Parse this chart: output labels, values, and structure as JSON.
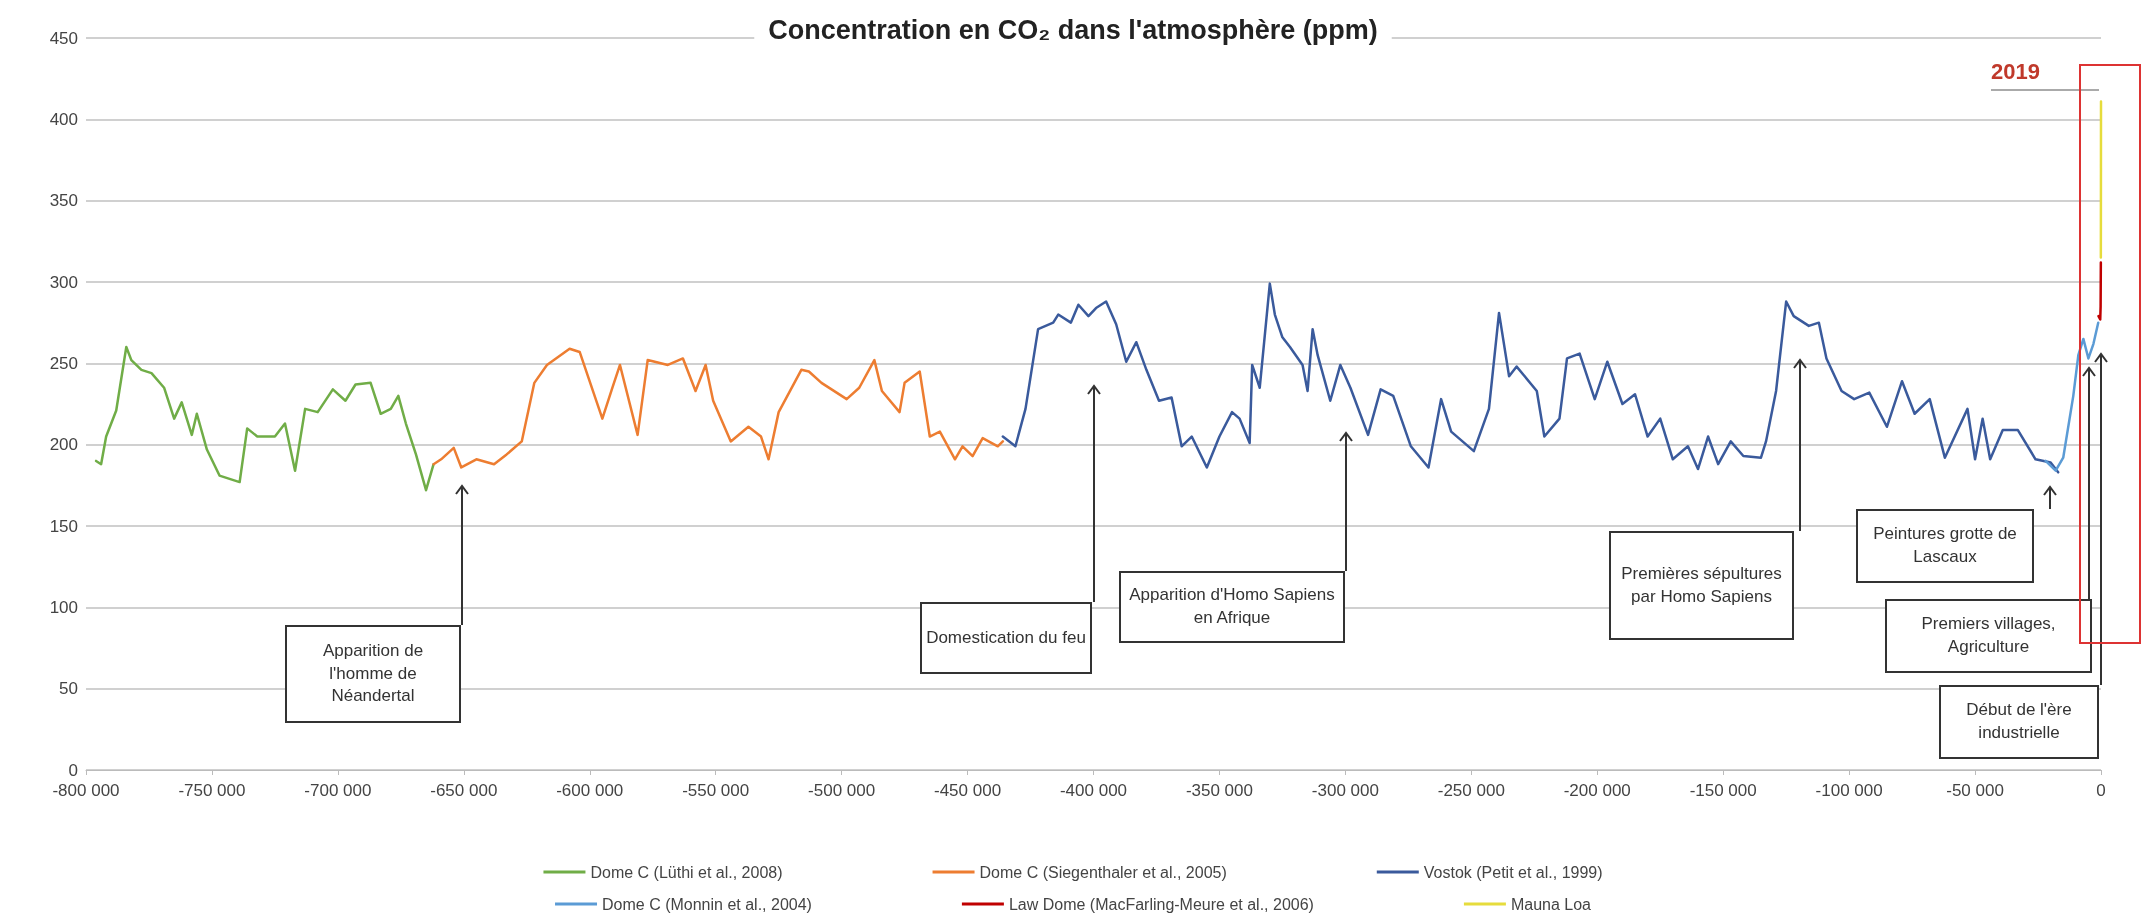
{
  "chart_data": {
    "type": "line",
    "title": "Concentration en CO₂ dans l'atmosphère (ppm)",
    "xlim": [
      -800000,
      0
    ],
    "xticks": [
      {
        "value": -800000,
        "label": "-800 000"
      },
      {
        "value": -750000,
        "label": "-750 000"
      },
      {
        "value": -700000,
        "label": "-700 000"
      },
      {
        "value": -650000,
        "label": "-650 000"
      },
      {
        "value": -600000,
        "label": "-600 000"
      },
      {
        "value": -550000,
        "label": "-550 000"
      },
      {
        "value": -500000,
        "label": "-500 000"
      },
      {
        "value": -450000,
        "label": "-450 000"
      },
      {
        "value": -400000,
        "label": "-400 000"
      },
      {
        "value": -350000,
        "label": "-350 000"
      },
      {
        "value": -300000,
        "label": "-300 000"
      },
      {
        "value": -250000,
        "label": "-250 000"
      },
      {
        "value": -200000,
        "label": "-200 000"
      },
      {
        "value": -150000,
        "label": "-150 000"
      },
      {
        "value": -100000,
        "label": "-100 000"
      },
      {
        "value": -50000,
        "label": "-50 000"
      },
      0
    ],
    "ylim": [
      0,
      450
    ],
    "yticks": [
      0,
      50,
      100,
      150,
      200,
      250,
      300,
      350,
      400,
      450
    ],
    "grid": "y",
    "legend": "bottom",
    "marker": "none",
    "line_style": "solid",
    "series": [
      {
        "name": "Dome C (Lüthi et al., 2008)",
        "color": "#70ad47",
        "x": [
          -796000,
          -794000,
          -792000,
          -788000,
          -784000,
          -782000,
          -778000,
          -774000,
          -769000,
          -765000,
          -762000,
          -758000,
          -756000,
          -752000,
          -747000,
          -739000,
          -736000,
          -732000,
          -725000,
          -721000,
          -717000,
          -713000,
          -708000,
          -702000,
          -697000,
          -693000,
          -687000,
          -683000,
          -679000,
          -676000,
          -673000,
          -669000,
          -665000,
          -662000
        ],
        "values": [
          190,
          188,
          205,
          221,
          260,
          252,
          246,
          244,
          235,
          216,
          226,
          206,
          219,
          197,
          181,
          177,
          210,
          205,
          205,
          213,
          184,
          222,
          220,
          234,
          227,
          237,
          238,
          219,
          222,
          230,
          213,
          194,
          172,
          188
        ]
      },
      {
        "name": "Dome C (Siegenthaler et al., 2005)",
        "color": "#ed7d31",
        "x": [
          -662000,
          -659000,
          -654000,
          -651000,
          -645000,
          -638000,
          -633000,
          -627000,
          -622000,
          -617000,
          -608000,
          -604000,
          -595000,
          -591000,
          -588000,
          -581000,
          -577000,
          -569000,
          -563000,
          -558000,
          -554000,
          -551000,
          -544000,
          -537000,
          -532000,
          -529000,
          -525000,
          -516000,
          -513000,
          -508000,
          -498000,
          -493000,
          -487000,
          -484000,
          -477000,
          -475000,
          -469000,
          -465000,
          -461000,
          -455000,
          -452000,
          -448000,
          -444000,
          -438000,
          -436000
        ],
        "values": [
          188,
          191,
          198,
          186,
          191,
          188,
          194,
          202,
          238,
          249,
          259,
          257,
          216,
          235,
          249,
          206,
          252,
          249,
          253,
          233,
          249,
          227,
          202,
          211,
          205,
          191,
          220,
          246,
          245,
          238,
          228,
          235,
          252,
          233,
          220,
          238,
          245,
          205,
          208,
          191,
          199,
          193,
          204,
          199,
          202
        ]
      },
      {
        "name": "Vostok (Petit et al., 1999)",
        "color": "#3a5a9c",
        "x": [
          -436000,
          -431000,
          -427000,
          -422000,
          -416000,
          -414000,
          -409000,
          -406000,
          -402000,
          -399000,
          -395000,
          -391000,
          -387000,
          -383000,
          -379000,
          -374000,
          -369000,
          -365000,
          -361000,
          -355000,
          -350000,
          -345000,
          -342000,
          -338000,
          -337000,
          -334000,
          -330000,
          -328000,
          -325000,
          -322000,
          -317000,
          -315000,
          -313000,
          -311000,
          -306000,
          -302000,
          -298000,
          -291000,
          -286000,
          -281000,
          -274000,
          -267000,
          -262000,
          -258000,
          -249000,
          -243000,
          -239000,
          -235000,
          -232000,
          -224000,
          -221000,
          -215000,
          -212000,
          -207000,
          -201000,
          -196000,
          -190000,
          -185000,
          -180000,
          -175000,
          -170000,
          -164000,
          -160000,
          -156000,
          -152000,
          -147000,
          -142000,
          -135000,
          -133000,
          -129000,
          -125000,
          -122000,
          -116000,
          -112000,
          -109000,
          -103000,
          -98000,
          -92000,
          -85000,
          -79000,
          -74000,
          -68000,
          -62000,
          -53000,
          -50000,
          -47000,
          -44000,
          -39000,
          -33000,
          -26000,
          -20000,
          -17000
        ],
        "values": [
          205,
          199,
          222,
          271,
          275,
          280,
          275,
          286,
          279,
          284,
          288,
          274,
          251,
          263,
          246,
          227,
          229,
          199,
          205,
          186,
          205,
          220,
          216,
          201,
          249,
          235,
          299,
          280,
          266,
          260,
          249,
          233,
          271,
          255,
          227,
          249,
          235,
          206,
          234,
          230,
          199,
          186,
          228,
          208,
          196,
          222,
          281,
          242,
          248,
          233,
          205,
          216,
          253,
          256,
          228,
          251,
          225,
          231,
          205,
          216,
          191,
          199,
          185,
          205,
          188,
          202,
          193,
          192,
          202,
          233,
          288,
          279,
          273,
          275,
          253,
          233,
          228,
          232,
          211,
          239,
          219,
          228,
          192,
          222,
          191,
          216,
          191,
          209,
          209,
          191,
          189,
          183
        ]
      },
      {
        "name": "Dome C (Monnin et al., 2004)",
        "color": "#5b9bd5",
        "x": [
          -22000,
          -18000,
          -15000,
          -11000,
          -9000,
          -7000,
          -5000,
          -3000,
          -1100
        ],
        "values": [
          190,
          184,
          192,
          230,
          255,
          265,
          253,
          262,
          275
        ]
      },
      {
        "name": "Law Dome (MacFarling-Meure et al., 2006)",
        "color": "#c00000",
        "x": [
          -1000,
          -300,
          -150,
          -61
        ],
        "values": [
          279,
          277,
          285,
          312
        ]
      },
      {
        "name": "Mauna Loa",
        "color": "#e6dc3c",
        "x": [
          -61,
          -40,
          -20,
          0
        ],
        "values": [
          315,
          338,
          370,
          411
        ]
      }
    ],
    "annotations": [
      "Apparition de l'homme de Néandertal",
      "Domestication du feu",
      "Apparition d'Homo Sapiens en Afrique",
      "Premières sépultures par Homo Sapiens",
      "Peintures grotte de Lascaux",
      "Premiers villages, Agriculture",
      "Début de l'ère industrielle",
      {
        "text": "2019",
        "x": 0,
        "y": 411
      }
    ]
  }
}
